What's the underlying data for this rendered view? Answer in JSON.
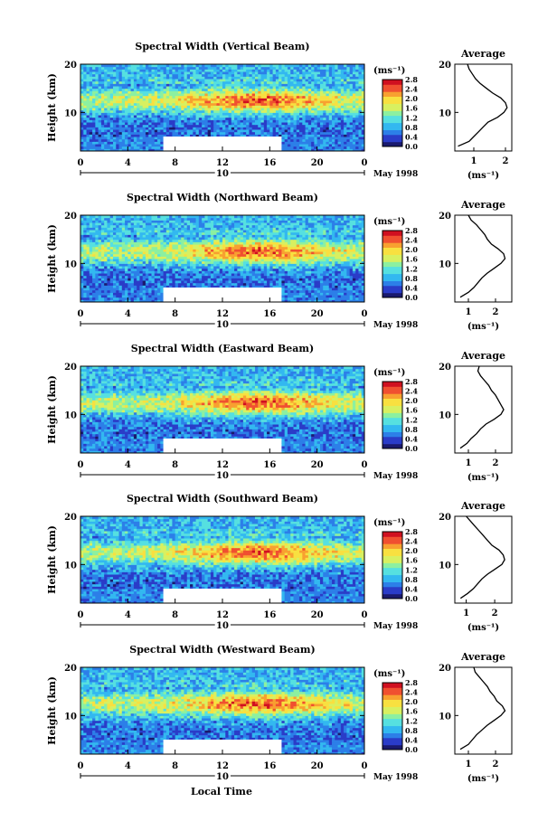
{
  "figure": {
    "xlabel": "Local Time",
    "date_label": "May 1998",
    "center_day": "10",
    "colorbar_unit": "(ms⁻¹)",
    "colorbar_ticks": [
      "2.8",
      "2.4",
      "2.0",
      "1.6",
      "1.2",
      "0.8",
      "0.4",
      "0.0"
    ],
    "colormap": [
      "#1a1a6e",
      "#2a3cc8",
      "#2c7fe8",
      "#33b8f0",
      "#56e0e0",
      "#8cf0a0",
      "#d8f060",
      "#f8e040",
      "#f8a030",
      "#f05030",
      "#d01020"
    ]
  },
  "chart_data": [
    {
      "type": "heatmap",
      "title": "Spectral Width (Vertical Beam)",
      "ylabel": "Height (km)",
      "x_ticks": [
        "0",
        "4",
        "8",
        "12",
        "16",
        "20",
        "0"
      ],
      "y_ticks": [
        "20",
        "10"
      ],
      "xlim": [
        0,
        24
      ],
      "ylim": [
        2,
        20
      ],
      "colorbar_range": [
        0.0,
        2.8
      ],
      "data_gap_hours": [
        7,
        17
      ],
      "data_gap_height_km": [
        2,
        5
      ],
      "profile": {
        "title": "Average",
        "x_ticks": [
          "1",
          "2"
        ],
        "xlabel": "(ms⁻¹)",
        "xlim": [
          0.4,
          2.2
        ],
        "heights_km": [
          3,
          4,
          5,
          6,
          7,
          8,
          9,
          10,
          11,
          12,
          13,
          14,
          15,
          16,
          17,
          18,
          19,
          20
        ],
        "values": [
          0.5,
          0.85,
          1.0,
          1.15,
          1.3,
          1.45,
          1.75,
          1.95,
          2.05,
          2.0,
          1.85,
          1.6,
          1.4,
          1.2,
          1.05,
          0.95,
          0.85,
          0.8
        ]
      }
    },
    {
      "type": "heatmap",
      "title": "Spectral Width (Northward Beam)",
      "ylabel": "Height (km)",
      "x_ticks": [
        "0",
        "4",
        "8",
        "12",
        "16",
        "20",
        "0"
      ],
      "y_ticks": [
        "20",
        "10"
      ],
      "xlim": [
        0,
        24
      ],
      "ylim": [
        2,
        20
      ],
      "colorbar_range": [
        0.0,
        2.8
      ],
      "data_gap_hours": [
        7,
        17
      ],
      "data_gap_height_km": [
        2,
        5
      ],
      "profile": {
        "title": "Average",
        "x_ticks": [
          "1",
          "2"
        ],
        "xlabel": "(ms⁻¹)",
        "xlim": [
          0.5,
          2.6
        ],
        "heights_km": [
          3,
          4,
          5,
          6,
          7,
          8,
          9,
          10,
          11,
          12,
          13,
          14,
          15,
          16,
          17,
          18,
          19,
          20
        ],
        "values": [
          0.7,
          1.0,
          1.2,
          1.35,
          1.5,
          1.7,
          1.95,
          2.2,
          2.35,
          2.3,
          2.1,
          1.85,
          1.7,
          1.6,
          1.45,
          1.3,
          1.1,
          1.0
        ]
      }
    },
    {
      "type": "heatmap",
      "title": "Spectral Width (Eastward Beam)",
      "ylabel": "Height (km)",
      "x_ticks": [
        "0",
        "4",
        "8",
        "12",
        "16",
        "20",
        "0"
      ],
      "y_ticks": [
        "20",
        "10"
      ],
      "xlim": [
        0,
        24
      ],
      "ylim": [
        2,
        20
      ],
      "colorbar_range": [
        0.0,
        2.8
      ],
      "data_gap_hours": [
        7,
        17
      ],
      "data_gap_height_km": [
        2,
        5
      ],
      "profile": {
        "title": "Average",
        "x_ticks": [
          "1",
          "2"
        ],
        "xlabel": "(ms⁻¹)",
        "xlim": [
          0.5,
          2.6
        ],
        "heights_km": [
          3,
          4,
          5,
          6,
          7,
          8,
          9,
          10,
          11,
          12,
          13,
          14,
          15,
          16,
          17,
          18,
          19,
          20
        ],
        "values": [
          0.7,
          0.95,
          1.1,
          1.3,
          1.45,
          1.65,
          1.95,
          2.2,
          2.3,
          2.2,
          2.1,
          2.0,
          1.85,
          1.75,
          1.6,
          1.45,
          1.35,
          1.4
        ]
      }
    },
    {
      "type": "heatmap",
      "title": "Spectral Width (Southward Beam)",
      "ylabel": "Height (km)",
      "x_ticks": [
        "0",
        "4",
        "8",
        "12",
        "16",
        "20",
        "0"
      ],
      "y_ticks": [
        "20",
        "10"
      ],
      "xlim": [
        0,
        24
      ],
      "ylim": [
        2,
        20
      ],
      "colorbar_range": [
        0.0,
        2.8
      ],
      "data_gap_hours": [
        7,
        17
      ],
      "data_gap_height_km": [
        2,
        5
      ],
      "profile": {
        "title": "Average",
        "x_ticks": [
          "1",
          "2"
        ],
        "xlabel": "(ms⁻¹)",
        "xlim": [
          0.6,
          2.6
        ],
        "heights_km": [
          3,
          4,
          5,
          6,
          7,
          8,
          9,
          10,
          11,
          12,
          13,
          14,
          15,
          16,
          17,
          18,
          19,
          20
        ],
        "values": [
          0.8,
          1.05,
          1.25,
          1.4,
          1.55,
          1.75,
          2.0,
          2.25,
          2.35,
          2.3,
          2.15,
          1.9,
          1.75,
          1.6,
          1.45,
          1.3,
          1.15,
          1.0
        ]
      }
    },
    {
      "type": "heatmap",
      "title": "Spectral Width (Westward Beam)",
      "ylabel": "Height (km)",
      "x_ticks": [
        "0",
        "4",
        "8",
        "12",
        "16",
        "20",
        "0"
      ],
      "y_ticks": [
        "20",
        "10"
      ],
      "xlim": [
        0,
        24
      ],
      "ylim": [
        2,
        20
      ],
      "colorbar_range": [
        0.0,
        2.8
      ],
      "data_gap_hours": [
        7,
        17
      ],
      "data_gap_height_km": [
        2,
        5
      ],
      "profile": {
        "title": "Average",
        "x_ticks": [
          "1",
          "2"
        ],
        "xlabel": "(ms⁻¹)",
        "xlim": [
          0.5,
          2.6
        ],
        "heights_km": [
          3,
          4,
          5,
          6,
          7,
          8,
          9,
          10,
          11,
          12,
          13,
          14,
          15,
          16,
          17,
          18,
          19,
          20
        ],
        "values": [
          0.7,
          1.0,
          1.15,
          1.3,
          1.5,
          1.7,
          1.95,
          2.2,
          2.35,
          2.25,
          2.05,
          1.95,
          1.8,
          1.7,
          1.55,
          1.4,
          1.25,
          1.2
        ]
      }
    }
  ]
}
